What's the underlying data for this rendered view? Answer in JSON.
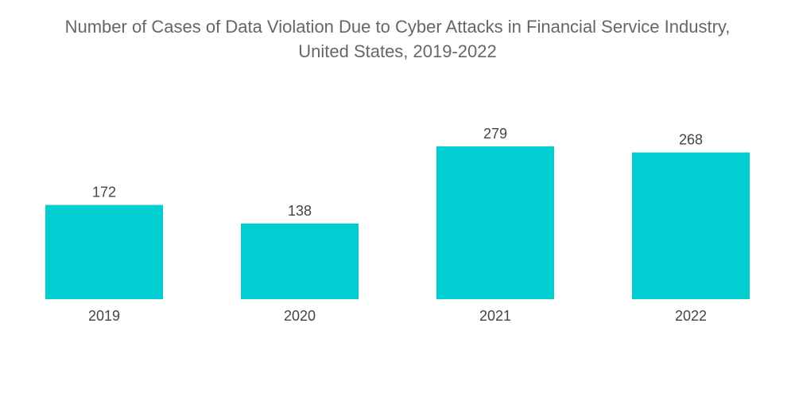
{
  "chart_data": {
    "type": "bar",
    "title_lines": [
      "Number of Cases of Data Violation Due to Cyber Attacks in Financial Service Industry,",
      "United States, 2019-2022"
    ],
    "categories": [
      "2019",
      "2020",
      "2021",
      "2022"
    ],
    "values": [
      172,
      138,
      279,
      268
    ],
    "xlabel": "",
    "ylabel": "",
    "ylim": [
      0,
      279
    ],
    "grid": false,
    "legend": "none",
    "bar_color": "#00CED1"
  }
}
